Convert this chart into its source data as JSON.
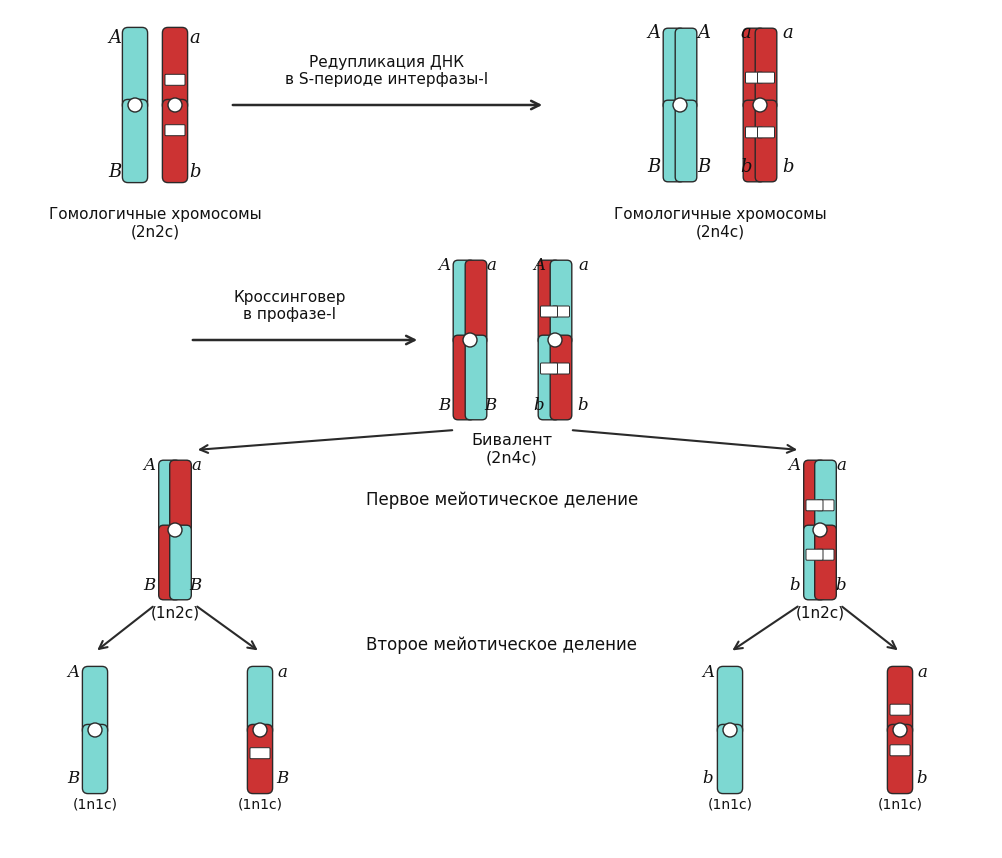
{
  "bg_color": "#ffffff",
  "cyan_color": "#7DD8D2",
  "red_color": "#CC3333",
  "white_band": "#ffffff",
  "outline_color": "#2a2a2a",
  "text_color": "#111111",
  "texts": {
    "reduplication": "Редупликация ДНК\nв S-периоде интерфазы-I",
    "crossover": "Кроссинговер\nв профазе-I",
    "bivalent": "Бивалент\n(2n4c)",
    "first_division": "Первое мейотическое деление",
    "second_division": "Второе мейотическое деление",
    "homologous_1": "Гомологичные хромосомы\n(2n2c)",
    "homologous_2": "Гомологичные хромосомы\n(2n4c)",
    "n2c_left": "(1n2c)",
    "n2c_right": "(1n2c)",
    "n1c": "(1n1c)"
  },
  "label_fontsize": 13,
  "text_fontsize": 11,
  "small_fontsize": 10
}
